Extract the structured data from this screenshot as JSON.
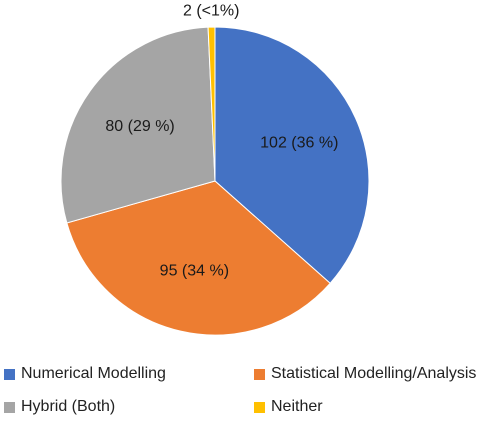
{
  "chart_data": {
    "type": "pie",
    "categories": [
      "Numerical Modelling",
      "Statistical Modelling/Analysis",
      "Hybrid (Both)",
      "Neither"
    ],
    "values": [
      102,
      95,
      80,
      2
    ],
    "data_labels": [
      "102 (36 %)",
      "95 (34 %)",
      "80 (29 %)",
      "2 (<1%)"
    ],
    "colors": [
      "#4472C4",
      "#ED7D31",
      "#A5A5A5",
      "#FFC000"
    ],
    "legend_position": "bottom",
    "title": ""
  }
}
